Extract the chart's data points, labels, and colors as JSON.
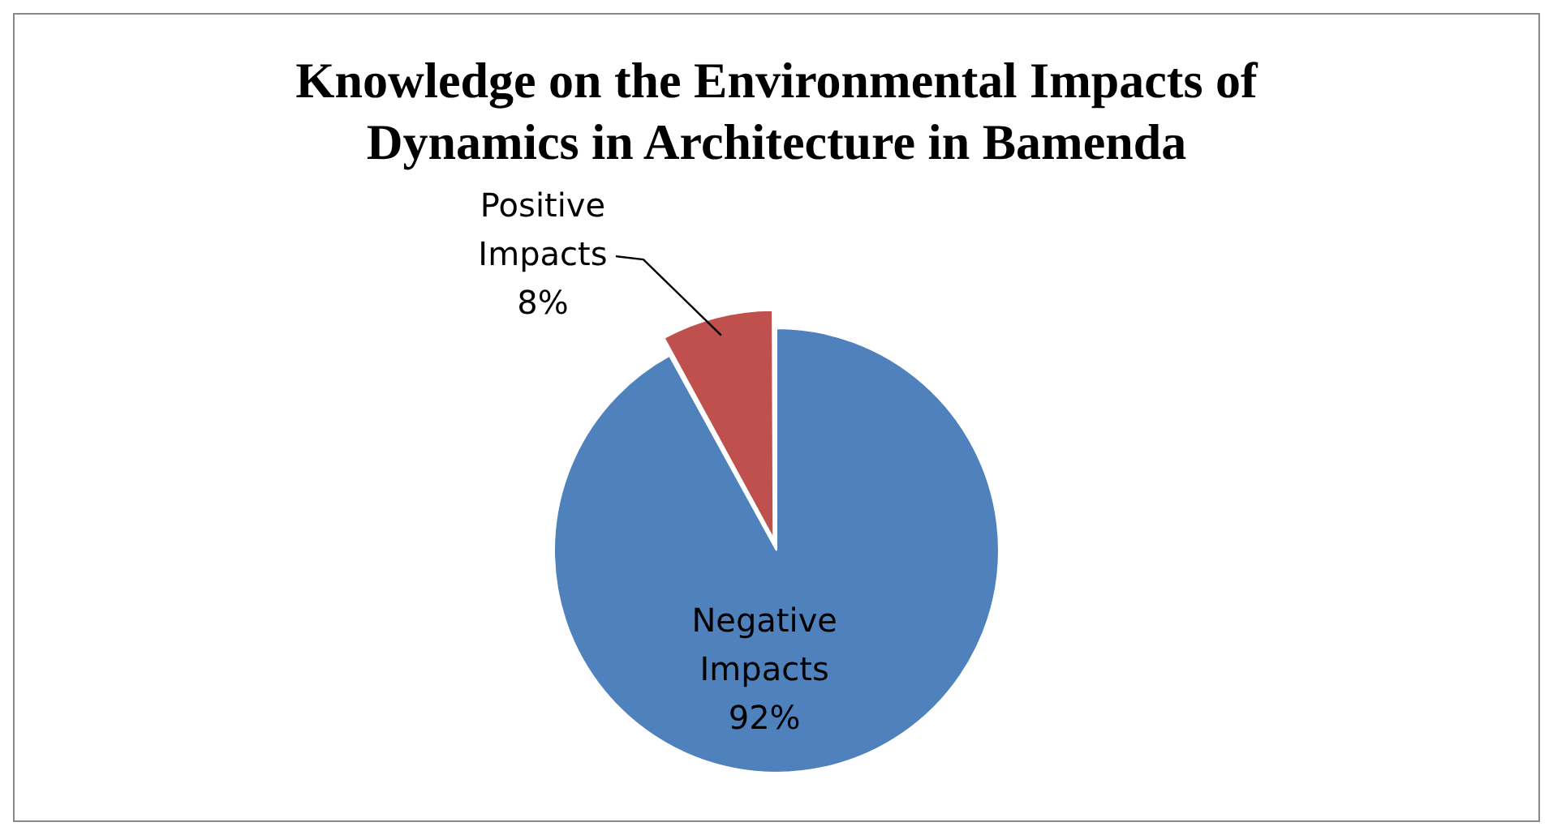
{
  "chart_data": {
    "type": "pie",
    "title": "Knowledge on the Environmental Impacts of Dynamics in Architecture in Bamenda",
    "categories": [
      "Negative Impacts",
      "Positive Impacts"
    ],
    "values": [
      92,
      8
    ],
    "colors": [
      "#4f81bd",
      "#c0504d"
    ],
    "value_labels": [
      "92%",
      "8%"
    ],
    "legend": false
  }
}
